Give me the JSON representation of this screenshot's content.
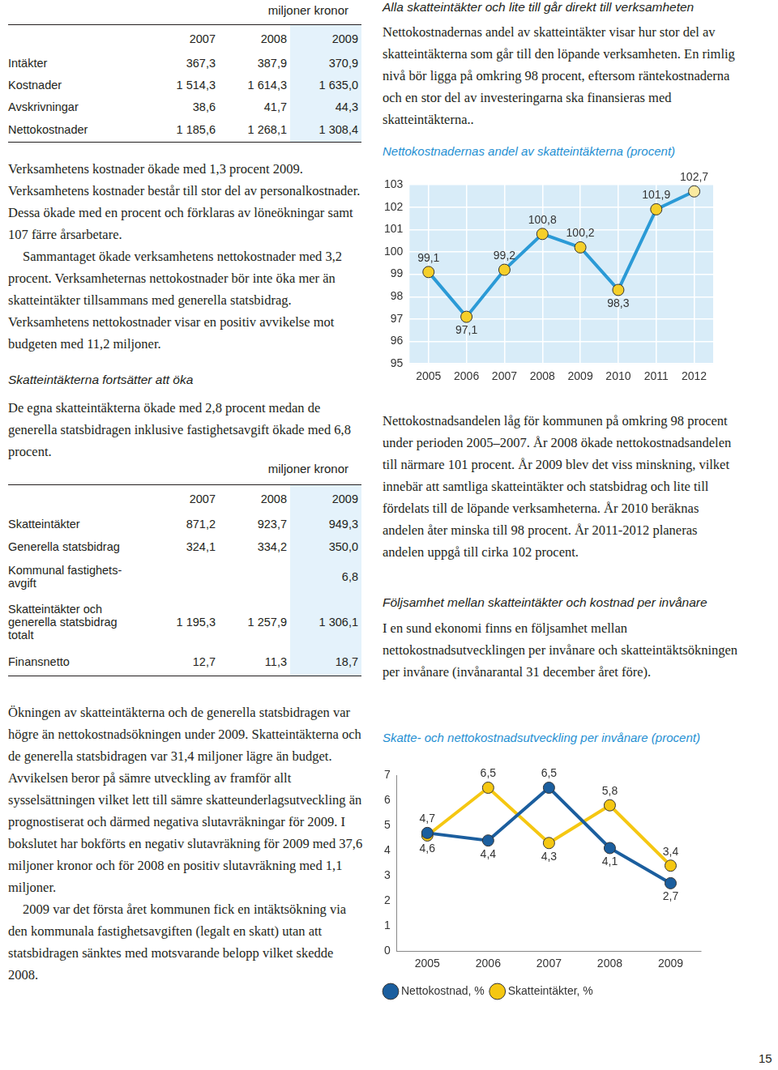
{
  "left": {
    "table1": {
      "unit": "miljoner kronor",
      "columns": [
        null,
        "2007",
        "2008",
        "2009"
      ],
      "rows": [
        [
          "Intäkter",
          "367,3",
          "387,9",
          "370,9"
        ],
        [
          "Kostnader",
          "1 514,3",
          "1 614,3",
          "1 635,0"
        ],
        [
          "Avskrivningar",
          "38,6",
          "41,7",
          "44,3"
        ],
        [
          "Nettokostnader",
          "1 185,6",
          "1 268,1",
          "1 308,4"
        ]
      ]
    },
    "paragraphs1": [
      "Verksamhetens kostnader ökade med 1,3 procent 2009. Verksamhetens kostnader består till stor del av personalkostnader. Dessa ökade med en procent och förklaras av löneökningar samt 107 färre årsarbetare.",
      "Sammantaget ökade verksamhetens nettokostnader med 3,2 procent. Verksamheternas nettokostnader bör inte öka mer än skatteintäkter tillsammans med generella statsbidrag. Verksamhetens nettokostnader visar en positiv avvikelse mot budgeten med 11,2 miljoner."
    ],
    "heading2": "Skatteintäkterna fortsätter att öka",
    "paragraphs2": [
      "De egna skatteintäkterna ökade med 2,8 procent medan de generella statsbidragen inklusive fastighetsavgift ökade med 6,8 procent."
    ],
    "table2": {
      "unit": "miljoner kronor",
      "columns": [
        null,
        "2007",
        "2008",
        "2009"
      ],
      "rows": [
        [
          "Skatteintäkter",
          "871,2",
          "923,7",
          "949,3"
        ],
        [
          "Generella statsbidrag",
          "324,1",
          "334,2",
          "350,0"
        ],
        [
          "Kommunal fastighets-avgift",
          null,
          null,
          "6,8"
        ],
        [
          "Skatteintäkter och generella statsbidrag totalt",
          "1 195,3",
          "1 257,9",
          "1 306,1"
        ],
        [
          "Finansnetto",
          "12,7",
          "11,3",
          "18,7"
        ]
      ]
    },
    "paragraphs3": [
      "Ökningen av skatteintäkterna och de generella statsbidragen var högre än nettokostnadsökningen under 2009. Skatteintäkterna och de generella statsbidragen var 31,4 miljoner lägre än budget. Avvikelsen beror på sämre utveckling av framför allt sysselsättningen vilket lett till sämre skatteunderlagsutveckling än prognostiserat och därmed negativa slutavräkningar för 2009. I bokslutet har bokförts en negativ slutavräkning för 2009 med 37,6 miljoner kronor och för 2008 en positiv slutavräkning med 1,1 miljoner.",
      "2009 var det första året kommunen fick en intäktsökning via den kommunala fastighetsavgiften (legalt en skatt) utan att statsbidragen sänktes med motsvarande belopp vilket skedde 2008."
    ]
  },
  "right": {
    "heading1": "Alla skatteintäkter och lite till går direkt till verksamheten",
    "paragraphs1": [
      "Nettokostnadernas andel av skatteintäkter visar hur stor del av skatteintäkterna som går till den löpande verksamheten. En rimlig nivå bör ligga på omkring 98 procent, eftersom räntekostnaderna och en stor del av investeringarna ska finansieras med skatteintäkterna.."
    ],
    "paragraphs2": [
      "Nettokostnadsandelen låg för kommunen på omkring 98 procent under perioden 2005–2007. År 2008 ökade nettokostnadsandelen till närmare 101 procent. År 2009 blev det viss minskning, vilket innebär att samtliga skatteintäkter och statsbidrag och lite till fördelats till de löpande verksamheterna. År 2010 beräknas andelen åter minska till 98 procent. År 2011-2012 planeras andelen uppgå till cirka 102 procent."
    ],
    "heading2": "Följsamhet mellan skatteintäkter och kostnad per invånare",
    "paragraphs3": [
      "I en sund ekonomi finns en följsamhet mellan nettokostnadsutvecklingen per invånare och skatteintäktsökningen per invånare (invånarantal 31 december året före)."
    ]
  },
  "page_number": "15",
  "chart_data": [
    {
      "type": "line",
      "title": "Nettokostnadernas andel av skatteintäkterna (procent)",
      "categories": [
        "2005",
        "2006",
        "2007",
        "2008",
        "2009",
        "2010",
        "2011",
        "2012"
      ],
      "series": [
        {
          "name": "Nettokostnadernas andel av skatteintäkterna",
          "color": "#2b9ad6",
          "colors": [
            "#f5cf2a",
            "#f5cf2a",
            "#f5cf2a",
            "#f5cf2a",
            "#f5cf2a",
            "#f5cf2a",
            "#f5cf2a",
            "#faeaa0"
          ],
          "marker": "circle",
          "values": [
            99.1,
            97.1,
            99.2,
            100.8,
            100.2,
            98.3,
            101.9,
            102.7
          ],
          "value_labels": [
            "99,1",
            "97,1",
            "99,2",
            "100,8",
            "100,2",
            "98,3",
            "101,9",
            "102,7"
          ]
        }
      ],
      "ylim": [
        95,
        103
      ],
      "yticks": [
        95,
        96,
        97,
        98,
        99,
        100,
        101,
        102,
        103
      ],
      "grid": true,
      "data_labels": true
    },
    {
      "type": "line",
      "title": "Skatte- och nettokostnadsutveckling per invånare (procent)",
      "categories": [
        "2005",
        "2006",
        "2007",
        "2008",
        "2009"
      ],
      "series": [
        {
          "name": "Nettokostnad, %",
          "color": "#1b5e9e",
          "marker": "circle",
          "values": [
            4.7,
            4.4,
            6.5,
            4.1,
            2.7
          ],
          "value_labels": [
            "4,7",
            "4,4",
            "6,5",
            "4,1",
            "2,7"
          ]
        },
        {
          "name": "Skatteintäkter, %",
          "color": "#f5c712",
          "marker": "circle",
          "values": [
            4.6,
            6.5,
            4.3,
            5.8,
            3.4
          ],
          "value_labels": [
            "4,6",
            "6,5",
            "4,3",
            "5,8",
            "3,4"
          ]
        }
      ],
      "ylim": [
        0,
        7
      ],
      "yticks": [
        0,
        1,
        2,
        3,
        4,
        5,
        6,
        7
      ],
      "grid": false,
      "legend": "bottom",
      "data_labels": true
    }
  ]
}
